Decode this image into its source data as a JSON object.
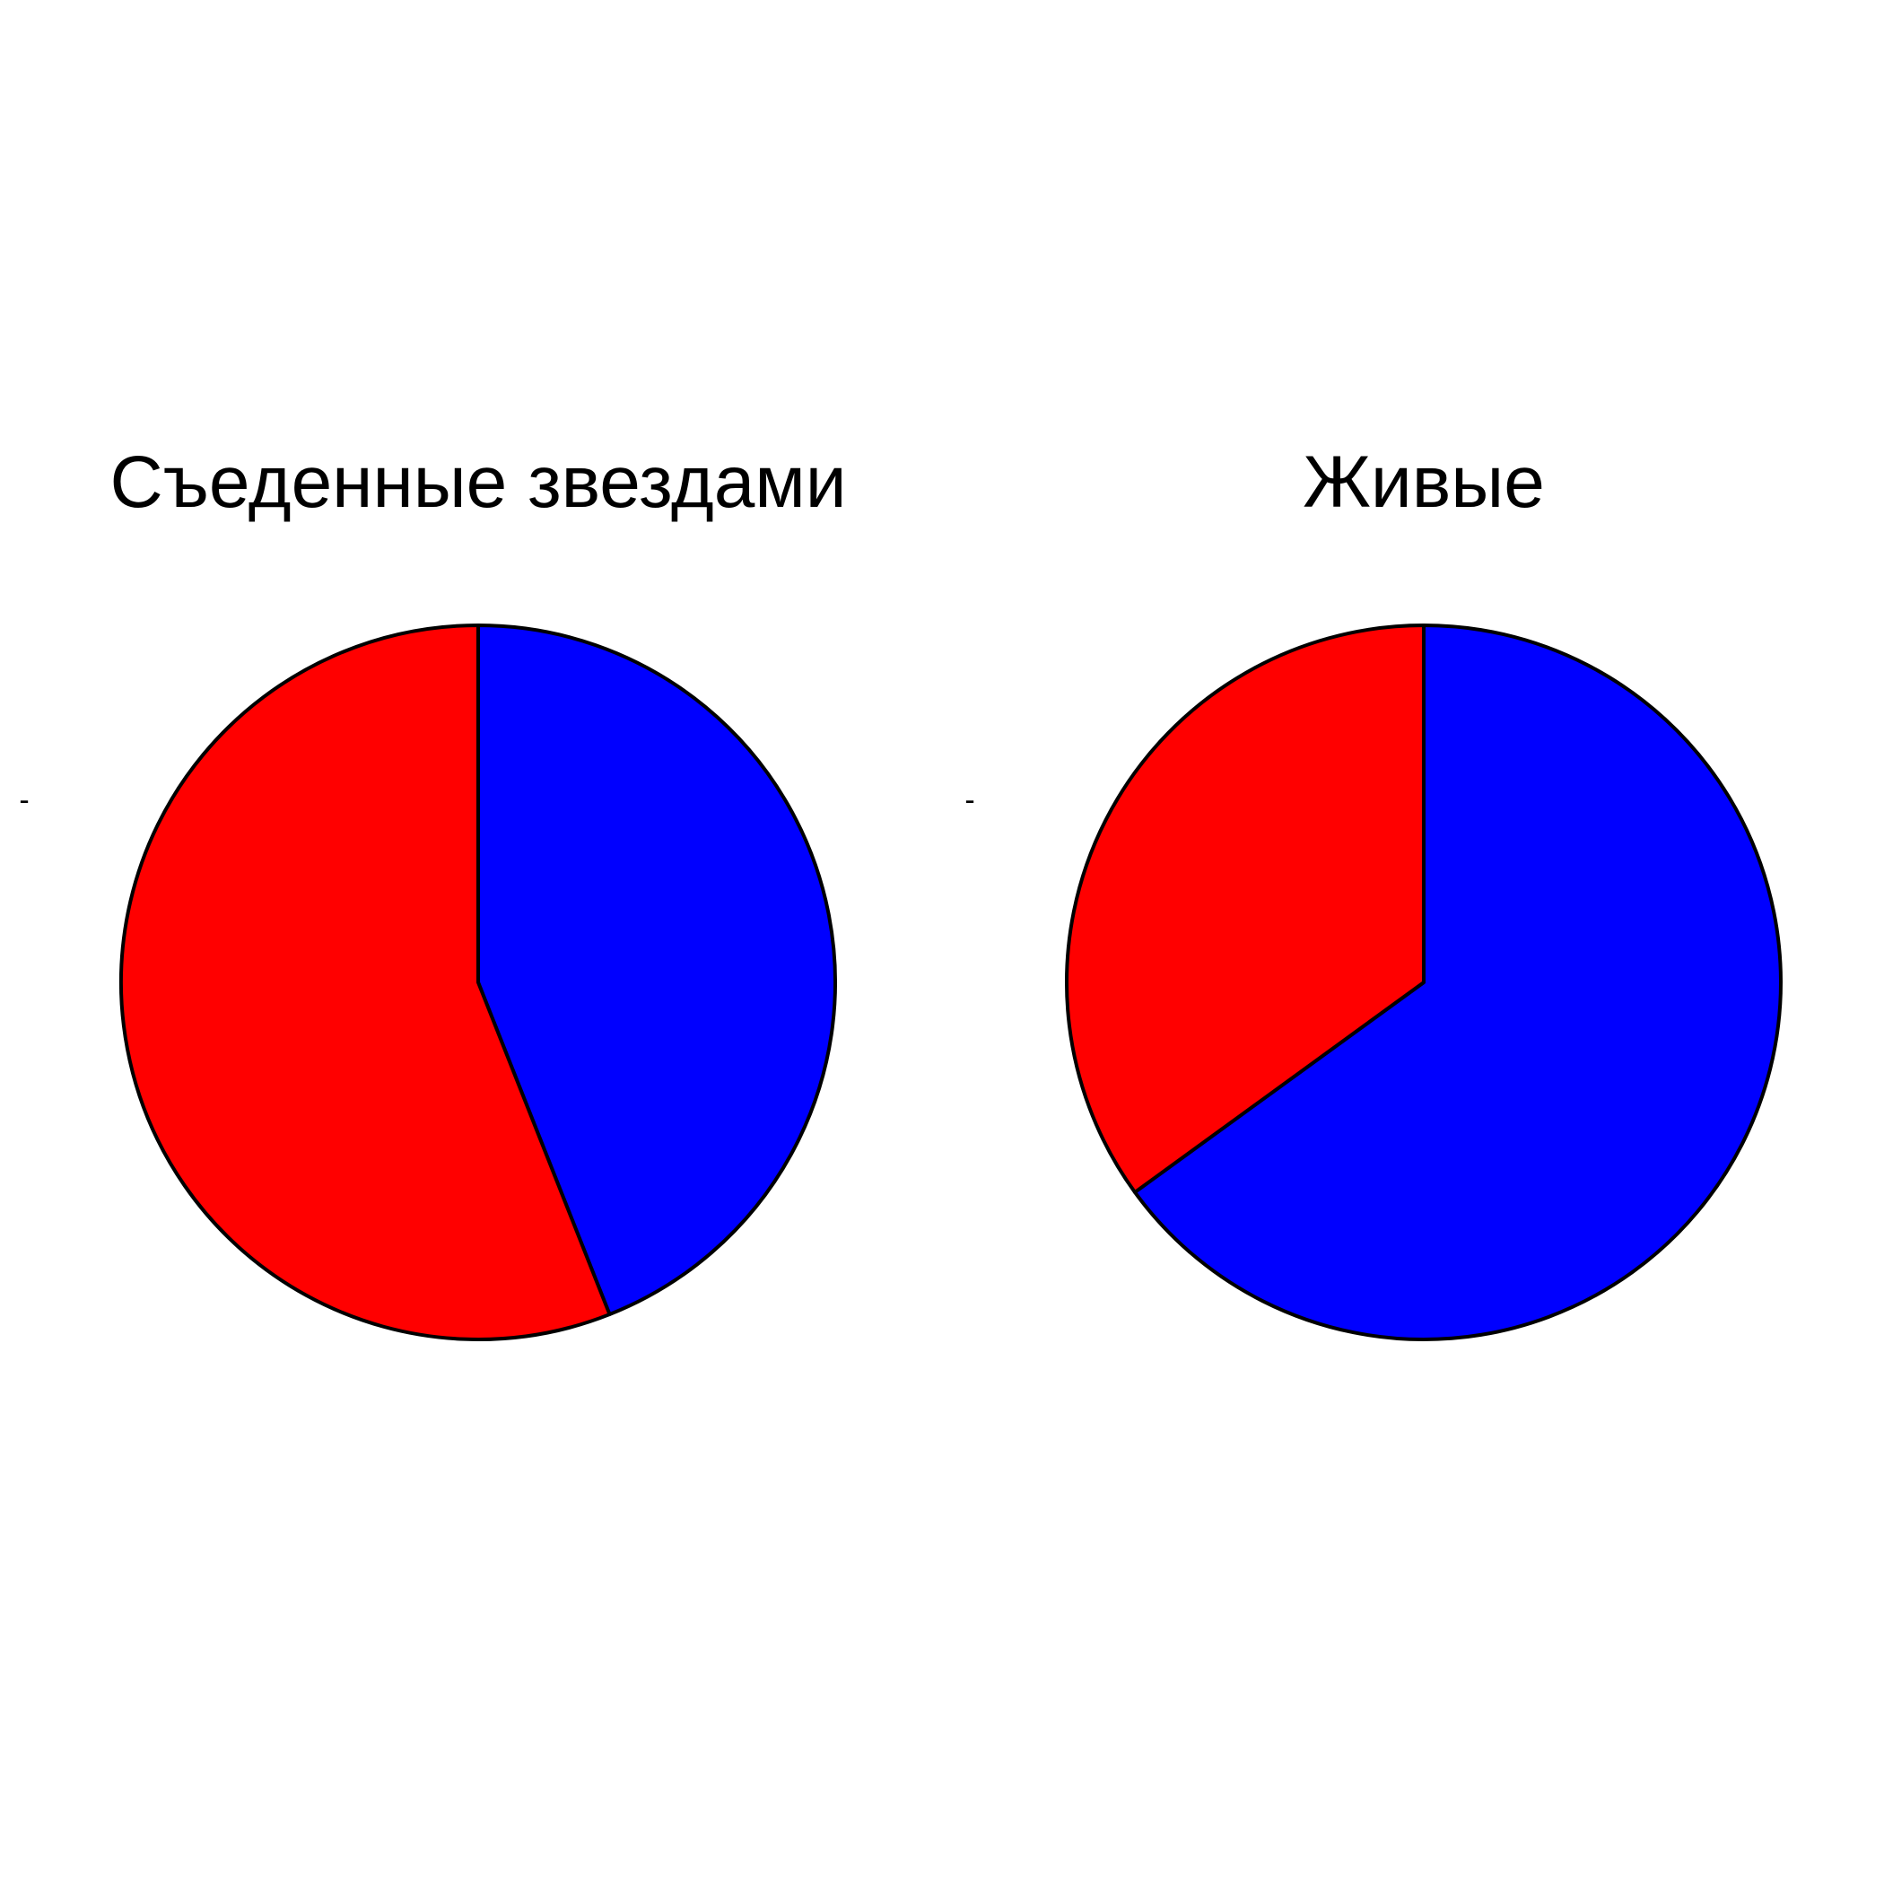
{
  "chart_data": [
    {
      "type": "pie",
      "title": "Съеденные звездами",
      "ylabel": "-",
      "direction": "clockwise",
      "start_angle": "12 o'clock",
      "slices": [
        {
          "value": 0.44,
          "color": "#0000FF"
        },
        {
          "value": 0.56,
          "color": "#FF0000"
        }
      ]
    },
    {
      "type": "pie",
      "title": "Живые",
      "ylabel": "-",
      "direction": "clockwise",
      "start_angle": "12 o'clock",
      "slices": [
        {
          "value": 0.65,
          "color": "#0000FF"
        },
        {
          "value": 0.35,
          "color": "#FF0000"
        }
      ]
    }
  ]
}
